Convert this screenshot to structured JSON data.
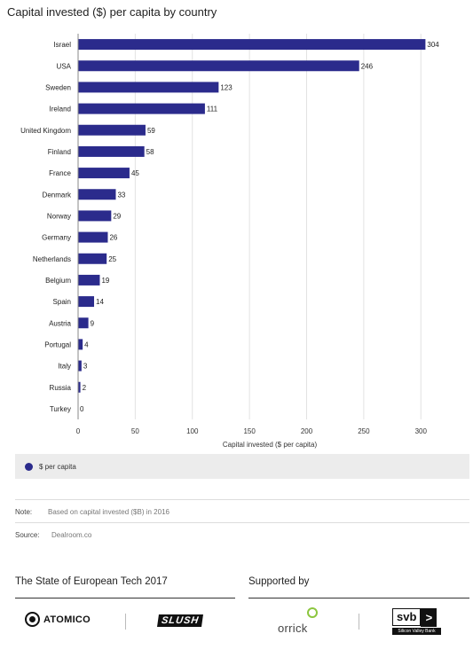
{
  "title": "Capital invested ($) per capita by country",
  "chart_data": {
    "type": "bar",
    "orientation": "horizontal",
    "categories": [
      "Israel",
      "USA",
      "Sweden",
      "Ireland",
      "United Kingdom",
      "Finland",
      "France",
      "Denmark",
      "Norway",
      "Germany",
      "Netherlands",
      "Belgium",
      "Spain",
      "Austria",
      "Portugal",
      "Italy",
      "Russia",
      "Turkey"
    ],
    "series": [
      {
        "name": "$ per capita",
        "values": [
          304,
          246,
          123,
          111,
          59,
          58,
          45,
          33,
          29,
          26,
          25,
          19,
          14,
          9,
          4,
          3,
          2,
          0
        ]
      }
    ],
    "xlabel": "Capital invested ($ per capita)",
    "ylabel": "",
    "xlim": [
      0,
      320
    ],
    "xticks": [
      0,
      50,
      100,
      150,
      200,
      250,
      300
    ],
    "bar_color": "#2b2b8c",
    "grid": "vertical",
    "legend": "bottom"
  },
  "legend": {
    "label": "$ per capita",
    "color": "#2b2b8c"
  },
  "note": {
    "label": "Note:",
    "text": "Based on capital invested ($B) in 2016"
  },
  "source": {
    "label": "Source:",
    "text": "Dealroom.co"
  },
  "footer": {
    "left_heading": "The State of European Tech 2017",
    "right_heading": "Supported by",
    "logos": {
      "atomico": "ATOMICO",
      "slush": "SLUSH",
      "orrick": "orrick",
      "svb": "svb",
      "svb_arrow": ">",
      "svb_sub": "Silicon Valley Bank"
    }
  }
}
